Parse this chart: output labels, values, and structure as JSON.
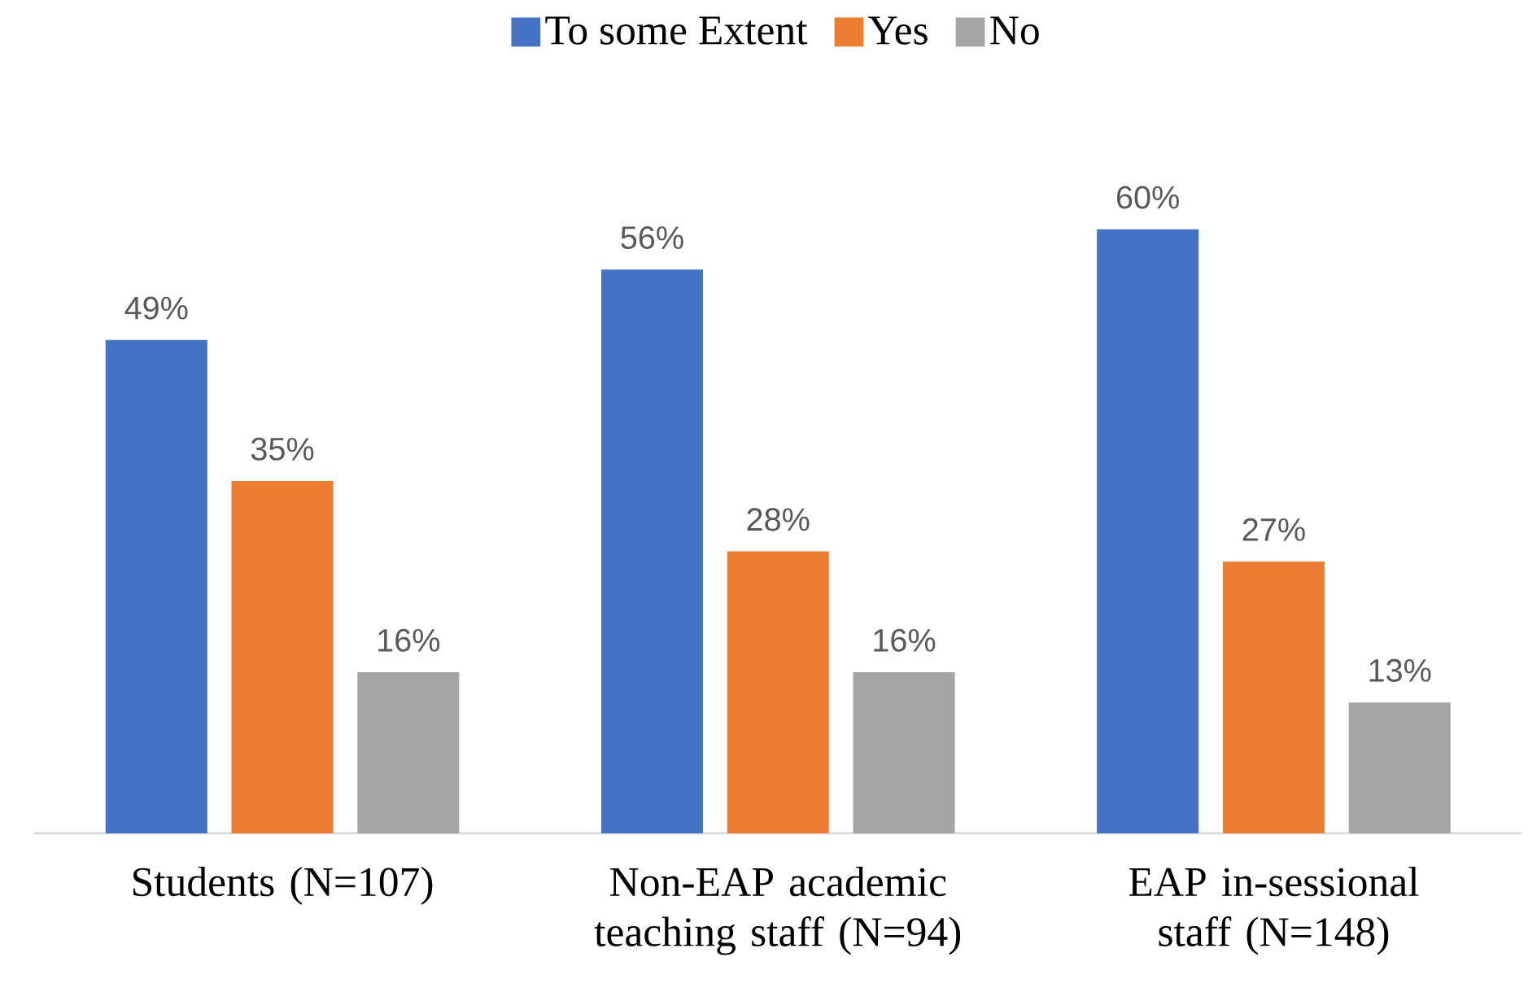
{
  "chart_data": {
    "type": "bar",
    "categories": [
      "Students (N=107)",
      "Non-EAP academic teaching staff (N=94)",
      "EAP in-sessional staff (N=148)"
    ],
    "series": [
      {
        "name": "To some Extent",
        "color": "#4472c4",
        "values": [
          49,
          56,
          60
        ],
        "value_labels": [
          "49%",
          "56%",
          "60%"
        ]
      },
      {
        "name": "Yes",
        "color": "#ed7d31",
        "values": [
          35,
          28,
          27
        ],
        "value_labels": [
          "35%",
          "28%",
          "27%"
        ]
      },
      {
        "name": "No",
        "color": "#a5a5a5",
        "values": [
          16,
          16,
          13
        ],
        "value_labels": [
          "16%",
          "16%",
          "13%"
        ]
      }
    ],
    "legend": "top",
    "tick_labels": "x"
  }
}
